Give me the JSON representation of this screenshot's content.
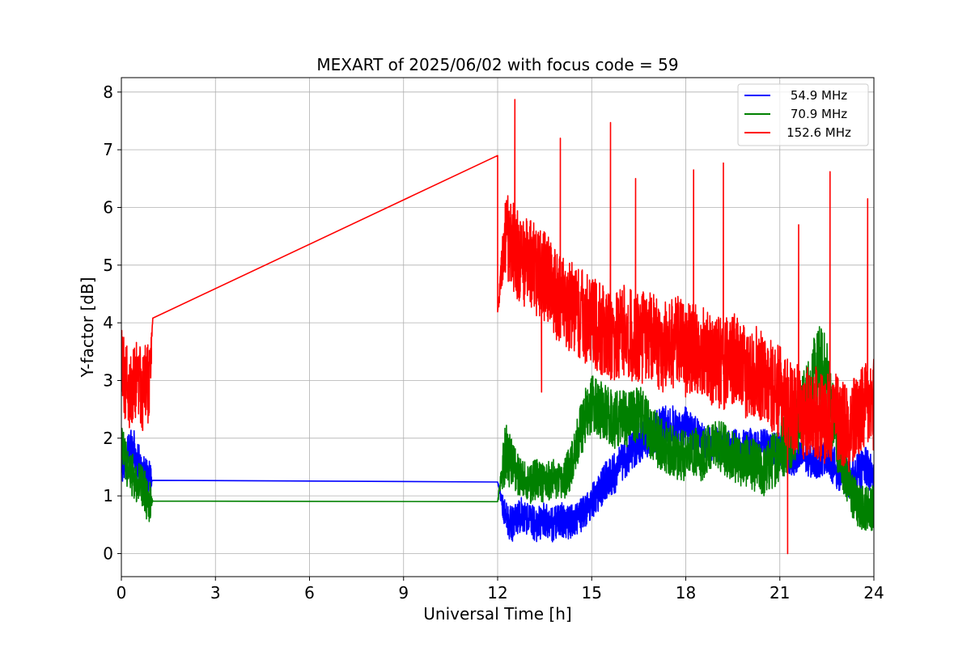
{
  "chart_data": {
    "type": "line",
    "title": "MEXART of 2025/06/02 with focus code = 59",
    "xlabel": "Universal Time [h]",
    "ylabel": "Y-factor [dB]",
    "xlim": [
      0,
      24
    ],
    "ylim": [
      -0.4,
      8.25
    ],
    "xticks": [
      0,
      3,
      6,
      9,
      12,
      15,
      18,
      21,
      24
    ],
    "yticks": [
      0,
      1,
      2,
      3,
      4,
      5,
      6,
      7,
      8
    ],
    "grid": true,
    "legend_position": "top-right",
    "series": [
      {
        "name": "54.9 MHz",
        "color": "#0000ff",
        "x": [
          0.0,
          0.1,
          0.2,
          0.3,
          0.4,
          0.5,
          0.6,
          0.7,
          0.8,
          0.9,
          1.0,
          12.0,
          12.25,
          12.5,
          12.75,
          13.0,
          13.25,
          13.5,
          13.75,
          14.0,
          14.25,
          14.5,
          14.75,
          15.0,
          15.25,
          15.5,
          15.75,
          16.0,
          16.25,
          16.5,
          16.75,
          17.0,
          17.25,
          17.5,
          17.75,
          18.0,
          18.25,
          18.5,
          18.75,
          19.0,
          19.25,
          19.5,
          19.75,
          20.0,
          20.25,
          20.5,
          20.75,
          21.0,
          21.25,
          21.5,
          21.75,
          22.0,
          22.25,
          22.5,
          22.75,
          23.0,
          23.25,
          23.5,
          23.75,
          24.0
        ],
        "y": [
          1.6,
          1.5,
          1.7,
          1.9,
          1.8,
          1.6,
          1.5,
          1.4,
          1.3,
          1.3,
          1.27,
          1.24,
          0.6,
          0.5,
          0.7,
          0.6,
          0.5,
          0.6,
          0.5,
          0.6,
          0.55,
          0.6,
          0.7,
          0.9,
          1.1,
          1.3,
          1.4,
          1.6,
          1.8,
          1.9,
          2.0,
          2.1,
          2.2,
          2.3,
          2.1,
          2.2,
          2.1,
          2.0,
          1.9,
          1.9,
          1.8,
          1.9,
          1.8,
          1.9,
          1.8,
          1.9,
          1.8,
          1.8,
          1.7,
          1.6,
          1.7,
          1.6,
          1.6,
          1.7,
          1.5,
          1.4,
          1.3,
          1.4,
          1.5,
          1.3
        ],
        "noise_amplitude": [
          0.35,
          0.35,
          0.35,
          0.35,
          0.35,
          0.35,
          0.35,
          0.35,
          0.35,
          0.35,
          0.0,
          0.0,
          0.3,
          0.3,
          0.3,
          0.3,
          0.3,
          0.3,
          0.3,
          0.3,
          0.3,
          0.3,
          0.3,
          0.3,
          0.35,
          0.35,
          0.35,
          0.35,
          0.35,
          0.35,
          0.35,
          0.35,
          0.35,
          0.35,
          0.35,
          0.35,
          0.3,
          0.3,
          0.3,
          0.3,
          0.3,
          0.3,
          0.3,
          0.3,
          0.3,
          0.3,
          0.3,
          0.3,
          0.3,
          0.3,
          0.3,
          0.3,
          0.3,
          0.3,
          0.35,
          0.35,
          0.35,
          0.35,
          0.35,
          0.35
        ]
      },
      {
        "name": "70.9 MHz",
        "color": "#008000",
        "x": [
          0.0,
          0.1,
          0.2,
          0.3,
          0.4,
          0.5,
          0.6,
          0.7,
          0.8,
          0.9,
          1.0,
          12.0,
          12.25,
          12.5,
          12.75,
          13.0,
          13.25,
          13.5,
          13.75,
          14.0,
          14.25,
          14.5,
          14.75,
          15.0,
          15.25,
          15.5,
          15.75,
          16.0,
          16.25,
          16.5,
          16.75,
          17.0,
          17.25,
          17.5,
          17.75,
          18.0,
          18.25,
          18.5,
          18.75,
          19.0,
          19.25,
          19.5,
          19.75,
          20.0,
          20.25,
          20.5,
          20.75,
          21.0,
          21.25,
          21.5,
          21.75,
          22.0,
          22.25,
          22.5,
          22.75,
          23.0,
          23.25,
          23.5,
          23.75,
          24.0
        ],
        "y": [
          1.8,
          1.7,
          1.5,
          1.4,
          1.3,
          1.2,
          1.3,
          1.1,
          1.0,
          0.9,
          0.91,
          0.9,
          1.8,
          1.5,
          1.3,
          1.2,
          1.3,
          1.2,
          1.3,
          1.2,
          1.4,
          1.9,
          2.3,
          2.6,
          2.5,
          2.4,
          2.3,
          2.4,
          2.3,
          2.5,
          2.2,
          2.0,
          1.9,
          1.8,
          1.7,
          1.7,
          1.8,
          1.7,
          1.8,
          1.9,
          1.8,
          1.7,
          1.6,
          1.6,
          1.5,
          1.4,
          1.6,
          1.8,
          2.0,
          2.2,
          2.5,
          2.8,
          3.2,
          3.0,
          2.2,
          1.6,
          1.1,
          0.8,
          0.8,
          0.8
        ],
        "noise_amplitude": [
          0.4,
          0.4,
          0.4,
          0.4,
          0.4,
          0.4,
          0.4,
          0.4,
          0.4,
          0.4,
          0.0,
          0.0,
          0.6,
          0.4,
          0.35,
          0.35,
          0.35,
          0.35,
          0.35,
          0.35,
          0.4,
          0.45,
          0.5,
          0.5,
          0.5,
          0.5,
          0.5,
          0.5,
          0.5,
          0.5,
          0.5,
          0.5,
          0.45,
          0.45,
          0.45,
          0.45,
          0.45,
          0.45,
          0.45,
          0.45,
          0.45,
          0.45,
          0.45,
          0.45,
          0.45,
          0.45,
          0.5,
          0.55,
          0.6,
          0.6,
          0.7,
          0.8,
          0.8,
          0.8,
          0.6,
          0.5,
          0.45,
          0.4,
          0.4,
          0.4
        ]
      },
      {
        "name": "152.6 MHz",
        "color": "#ff0000",
        "x": [
          0.0,
          0.1,
          0.2,
          0.3,
          0.4,
          0.5,
          0.6,
          0.7,
          0.8,
          0.9,
          1.0,
          12.0,
          12.25,
          12.5,
          12.75,
          13.0,
          13.25,
          13.5,
          13.75,
          14.0,
          14.25,
          14.5,
          14.75,
          15.0,
          15.25,
          15.5,
          15.75,
          16.0,
          16.25,
          16.5,
          16.75,
          17.0,
          17.25,
          17.5,
          17.75,
          18.0,
          18.25,
          18.5,
          18.75,
          19.0,
          19.25,
          19.5,
          19.75,
          20.0,
          20.25,
          20.5,
          20.75,
          21.0,
          21.25,
          21.5,
          21.75,
          22.0,
          22.25,
          22.5,
          22.75,
          23.0,
          23.25,
          23.5,
          23.75,
          24.0
        ],
        "y": [
          3.2,
          3.0,
          2.9,
          2.8,
          3.0,
          3.1,
          2.9,
          2.8,
          3.0,
          2.9,
          4.08,
          4.19,
          5.5,
          5.3,
          5.1,
          5.0,
          4.9,
          4.8,
          4.6,
          4.4,
          4.3,
          4.2,
          4.1,
          4.0,
          3.9,
          3.8,
          3.8,
          3.9,
          3.8,
          3.7,
          3.8,
          3.7,
          3.6,
          3.6,
          3.7,
          3.5,
          3.6,
          3.5,
          3.4,
          3.3,
          3.3,
          3.4,
          3.2,
          3.1,
          3.2,
          3.0,
          2.9,
          2.8,
          2.6,
          2.5,
          2.4,
          2.5,
          2.4,
          2.3,
          2.4,
          2.3,
          2.2,
          2.4,
          2.5,
          2.6
        ],
        "noise_amplitude": [
          0.7,
          0.7,
          0.7,
          0.7,
          0.7,
          0.7,
          0.7,
          0.7,
          0.7,
          0.7,
          0.0,
          0.0,
          0.8,
          0.8,
          0.8,
          0.8,
          0.8,
          0.8,
          0.8,
          0.8,
          0.8,
          0.8,
          0.8,
          0.8,
          0.8,
          0.8,
          0.8,
          0.8,
          0.8,
          0.8,
          0.8,
          0.8,
          0.8,
          0.8,
          0.8,
          0.8,
          0.8,
          0.8,
          0.8,
          0.8,
          0.8,
          0.8,
          0.8,
          0.8,
          0.8,
          0.8,
          0.8,
          0.8,
          0.8,
          0.8,
          0.8,
          0.8,
          0.8,
          0.8,
          0.8,
          0.8,
          0.8,
          0.8,
          0.8,
          0.8
        ],
        "spikes": [
          {
            "x": 12.0,
            "y": 6.9
          },
          {
            "x": 12.55,
            "y": 7.87
          },
          {
            "x": 13.4,
            "y": 2.8
          },
          {
            "x": 14.0,
            "y": 7.2
          },
          {
            "x": 15.6,
            "y": 7.47
          },
          {
            "x": 16.4,
            "y": 6.5
          },
          {
            "x": 18.25,
            "y": 6.65
          },
          {
            "x": 19.2,
            "y": 6.77
          },
          {
            "x": 21.25,
            "y": 0.0
          },
          {
            "x": 21.6,
            "y": 5.7
          },
          {
            "x": 22.6,
            "y": 6.62
          },
          {
            "x": 23.8,
            "y": 6.15
          }
        ]
      }
    ]
  }
}
